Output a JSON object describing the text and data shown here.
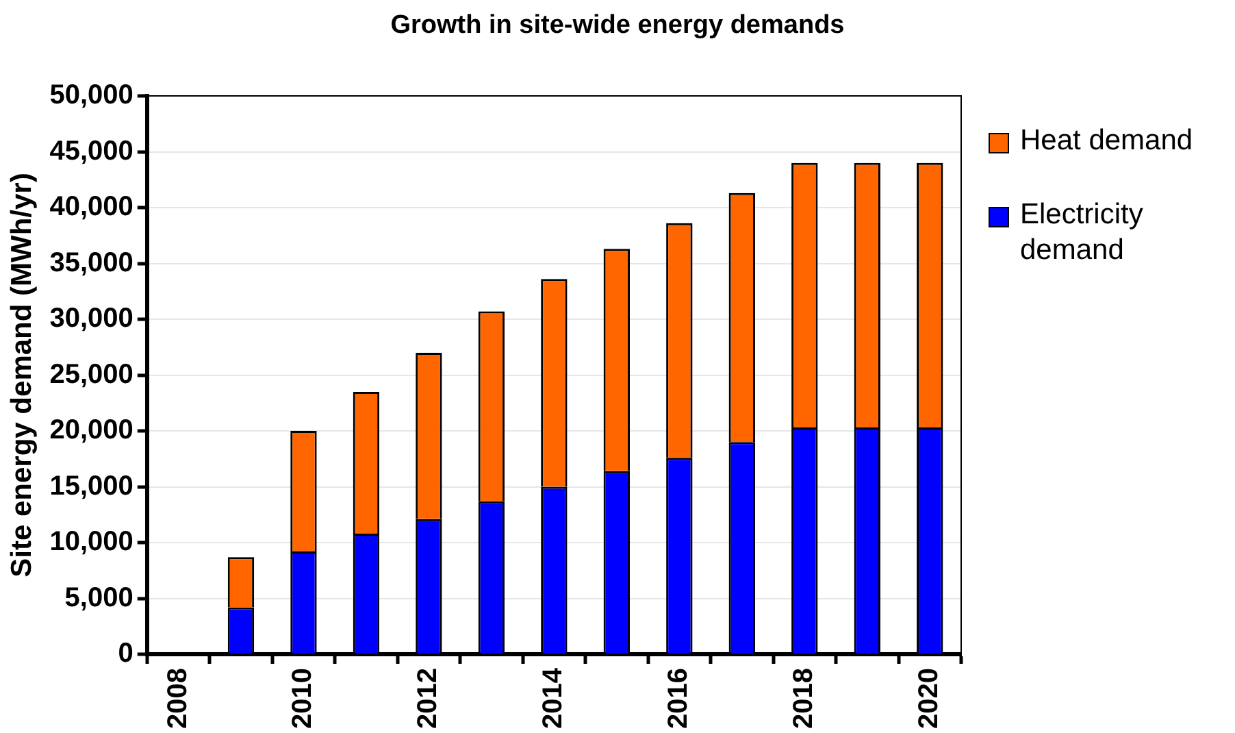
{
  "chart_data": {
    "type": "bar",
    "title": "Growth in site-wide energy demands",
    "ylabel": "Site energy demand (MWh/yr)",
    "categories": [
      "2008",
      null,
      "2010",
      null,
      "2012",
      null,
      "2014",
      null,
      "2016",
      null,
      "2018",
      null,
      "2020"
    ],
    "stacked": true,
    "series": [
      {
        "name": "Electricity demand",
        "color": "#0000ff",
        "values": [
          0,
          4200,
          9200,
          10800,
          12100,
          13700,
          15000,
          16400,
          17600,
          19000,
          20300,
          20300,
          20300
        ]
      },
      {
        "name": "Heat demand",
        "color": "#ff6600",
        "values": [
          0,
          4500,
          10800,
          12700,
          14900,
          17000,
          18600,
          19900,
          21000,
          22300,
          23700,
          23700,
          23700
        ]
      }
    ],
    "ylim": [
      0,
      50000
    ],
    "yticks": [
      0,
      {
        "value": 5000,
        "label": "5,000"
      },
      {
        "value": 10000,
        "label": "10,000"
      },
      {
        "value": 15000,
        "label": "15,000"
      },
      {
        "value": 20000,
        "label": "20,000"
      },
      {
        "value": 25000,
        "label": "25,000"
      },
      {
        "value": 30000,
        "label": "30,000"
      },
      {
        "value": 35000,
        "label": "35,000"
      },
      {
        "value": 40000,
        "label": "40,000"
      },
      {
        "value": 45000,
        "label": "45,000"
      },
      {
        "value": 50000,
        "label": "50,000"
      }
    ],
    "grid": "y",
    "legend": "right"
  }
}
